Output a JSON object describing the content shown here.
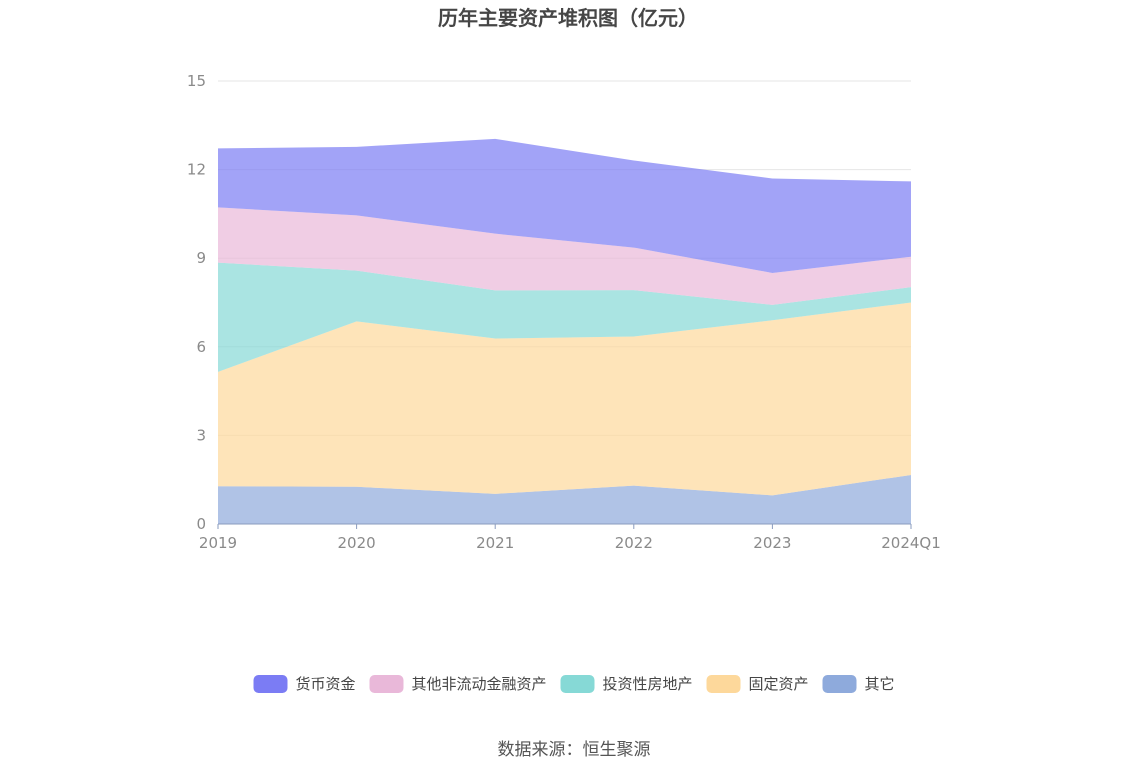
{
  "chart_data": {
    "type": "area",
    "stacked": true,
    "title": "历年主要资产堆积图（亿元）",
    "xlabel": "",
    "ylabel": "",
    "categories": [
      "2019",
      "2020",
      "2021",
      "2022",
      "2023",
      "2024Q1"
    ],
    "ylim": [
      0,
      15
    ],
    "yticks": [
      "0",
      "3",
      "6",
      "9",
      "12",
      "15"
    ],
    "grid": true,
    "legend_position": "bottom",
    "series": [
      {
        "name": "其它",
        "color": "#8eaadc",
        "values": [
          1.28,
          1.26,
          1.02,
          1.3,
          0.97,
          1.66
        ]
      },
      {
        "name": "固定资产",
        "color": "#fdd89b",
        "values": [
          3.87,
          5.6,
          5.26,
          5.05,
          5.93,
          5.84
        ]
      },
      {
        "name": "投资性房地产",
        "color": "#86d9d6",
        "values": [
          3.7,
          1.72,
          1.63,
          1.57,
          0.52,
          0.52
        ]
      },
      {
        "name": "其他非流动金融资产",
        "color": "#e9b8d9",
        "values": [
          1.87,
          1.87,
          1.92,
          1.44,
          1.08,
          1.03
        ]
      },
      {
        "name": "货币资金",
        "color": "#7b7cf4",
        "values": [
          2.0,
          2.32,
          3.21,
          2.95,
          3.2,
          2.55
        ]
      }
    ],
    "legend_order": [
      "货币资金",
      "其他非流动金融资产",
      "投资性房地产",
      "固定资产",
      "其它"
    ]
  },
  "source_text": "数据来源：恒生聚源"
}
